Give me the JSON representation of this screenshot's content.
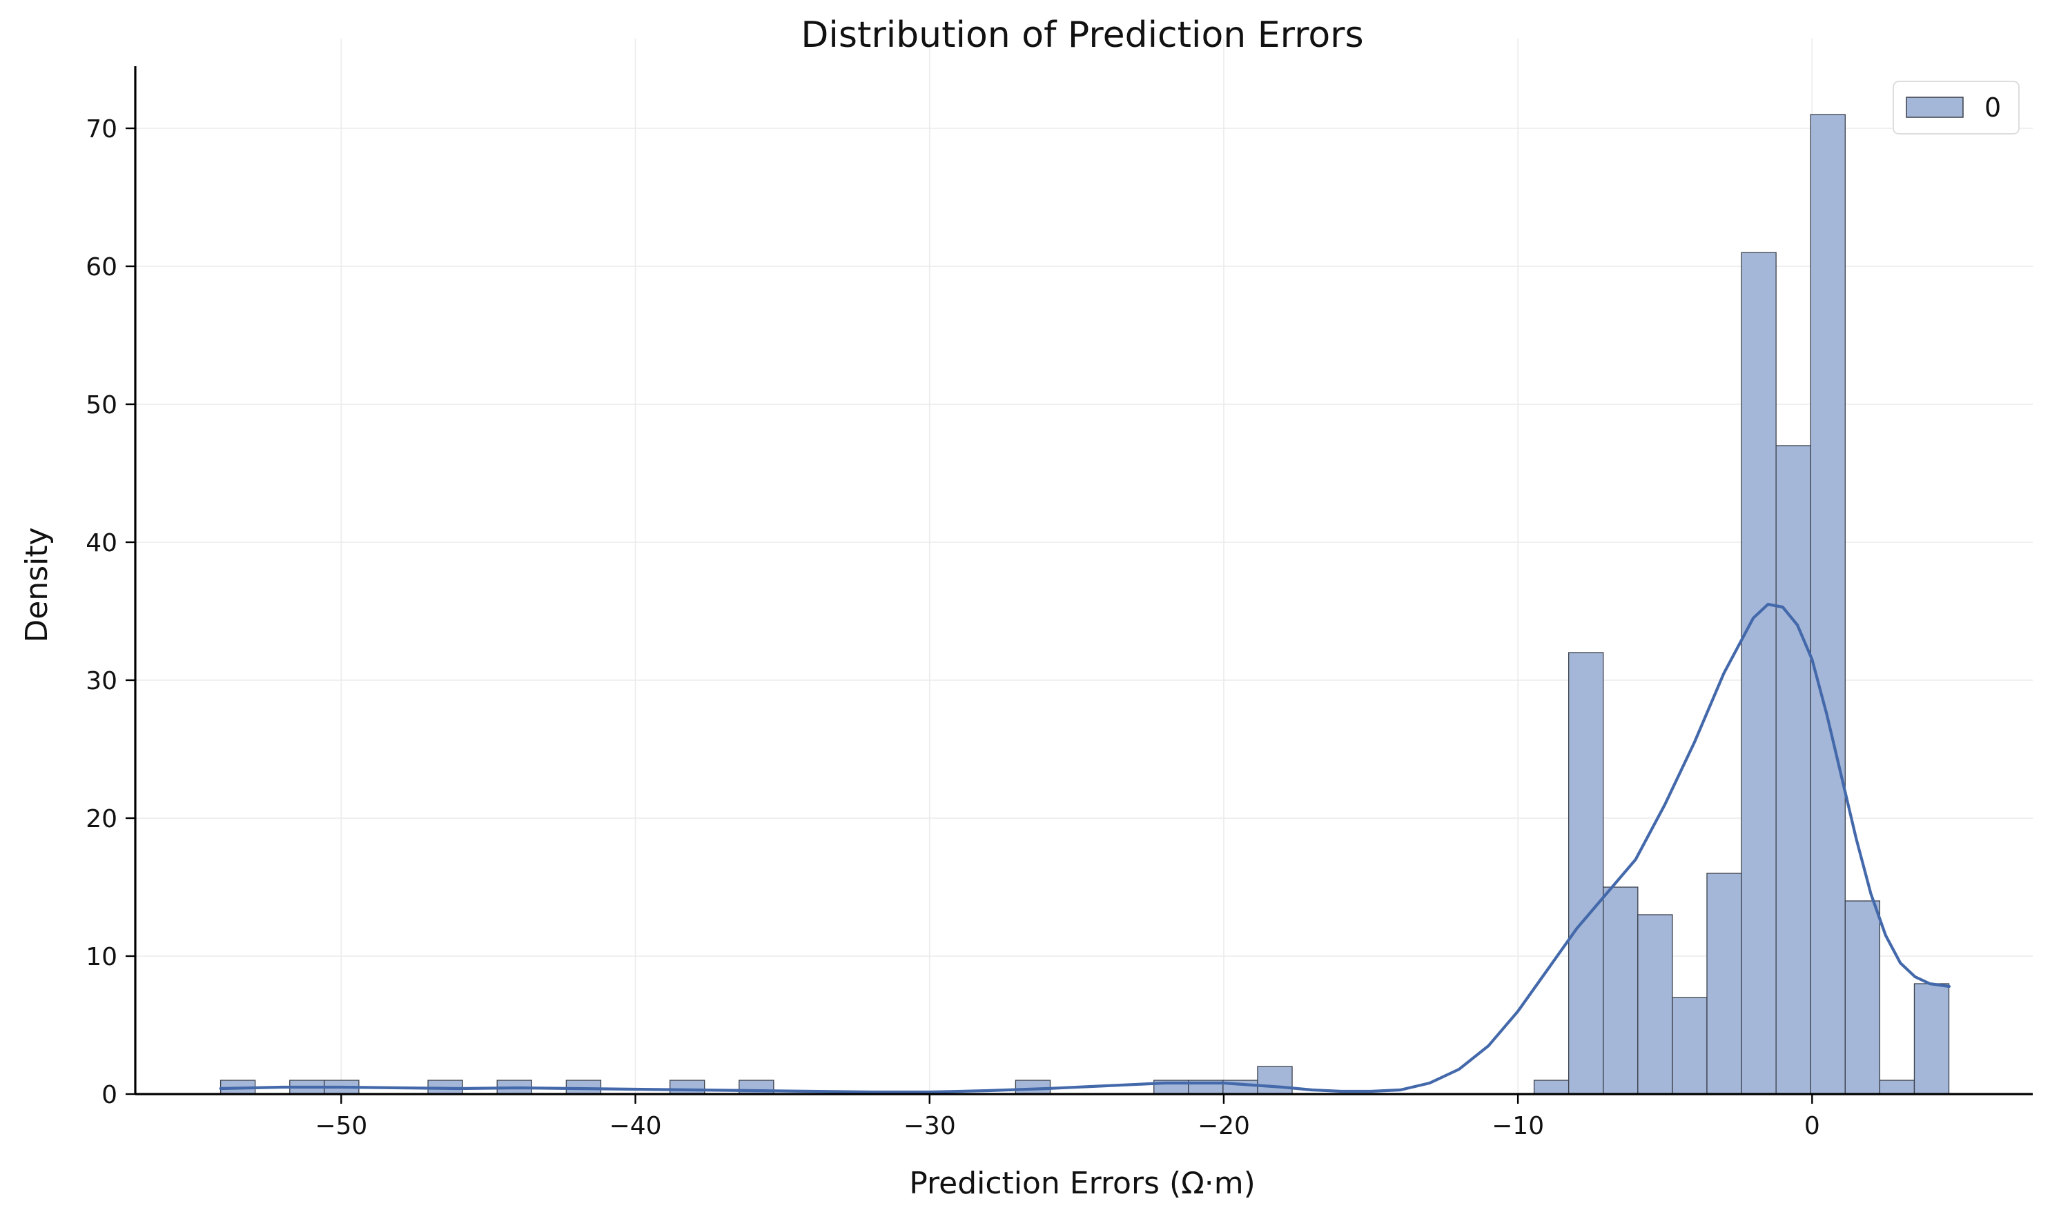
{
  "chart_data": {
    "type": "bar",
    "title": "Distribution of Prediction Errors",
    "xlabel": "Prediction Errors (Ω·m)",
    "ylabel": "Density",
    "xlim": [
      -57,
      7.5
    ],
    "ylim": [
      0,
      74.5
    ],
    "xticks": [
      -50,
      -40,
      -30,
      -20,
      -10,
      0
    ],
    "xtick_labels": [
      "−50",
      "−40",
      "−30",
      "−20",
      "−10",
      "0"
    ],
    "yticks": [
      0,
      10,
      20,
      30,
      40,
      50,
      60,
      70
    ],
    "ytick_labels": [
      "0",
      "10",
      "20",
      "30",
      "40",
      "50",
      "60",
      "70"
    ],
    "grid": true,
    "legend": {
      "position": "top-right",
      "entries": [
        "0"
      ]
    },
    "colors": {
      "bar_fill": "#a4b7d8",
      "bar_edge": "#3a3f4a",
      "kde_line": "#4469ab",
      "grid": "#ebebeb",
      "axis": "#000000"
    },
    "bins": {
      "start": -54.1,
      "width": 1.175,
      "counts": [
        1,
        0,
        1,
        1,
        0,
        0,
        1,
        0,
        1,
        0,
        1,
        0,
        0,
        1,
        0,
        1,
        0,
        0,
        0,
        0,
        0,
        0,
        0,
        1,
        0,
        0,
        0,
        1,
        1,
        1,
        2,
        0,
        0,
        0,
        0,
        0,
        0,
        0,
        1,
        32,
        15,
        13,
        7,
        16,
        61,
        47,
        71,
        14,
        1,
        8
      ]
    },
    "kde": {
      "x": [
        -54.1,
        -52,
        -50,
        -48,
        -46,
        -44,
        -42,
        -40,
        -38,
        -36,
        -34,
        -32,
        -30,
        -28,
        -26,
        -24,
        -22,
        -20,
        -18,
        -17,
        -16,
        -15,
        -14,
        -13,
        -12,
        -11,
        -10,
        -9,
        -8,
        -7,
        -6,
        -5,
        -4,
        -3,
        -2,
        -1.5,
        -1,
        -0.5,
        0,
        0.5,
        1,
        1.5,
        2,
        2.5,
        3,
        3.5,
        4,
        4.66
      ],
      "y": [
        0.4,
        0.5,
        0.5,
        0.45,
        0.4,
        0.45,
        0.4,
        0.35,
        0.3,
        0.25,
        0.2,
        0.15,
        0.15,
        0.25,
        0.4,
        0.6,
        0.8,
        0.8,
        0.5,
        0.3,
        0.2,
        0.2,
        0.3,
        0.8,
        1.8,
        3.5,
        6,
        9,
        12,
        14.5,
        17,
        21,
        25.5,
        30.5,
        34.5,
        35.5,
        35.3,
        34,
        31.5,
        27.5,
        23,
        18.5,
        14.5,
        11.5,
        9.5,
        8.5,
        8,
        7.8
      ]
    }
  }
}
